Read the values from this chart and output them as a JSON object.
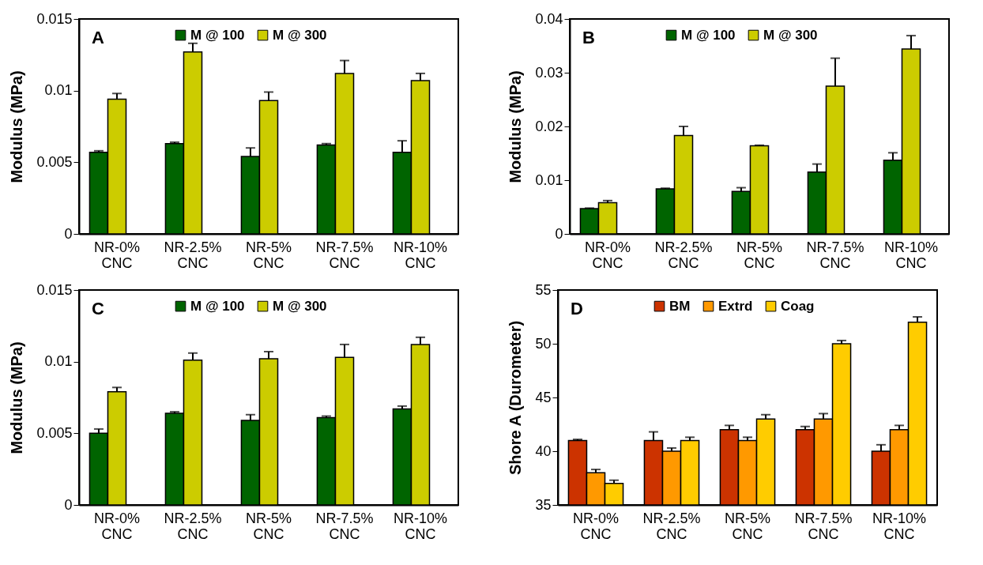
{
  "chart_data": [
    {
      "type": "bar",
      "title": "A",
      "ylabel": "Modulus (MPa)",
      "categories": [
        "NR-0% CNC",
        "NR-2.5% CNC",
        "NR-5% CNC",
        "NR-7.5% CNC",
        "NR-10% CNC"
      ],
      "ylim": [
        0,
        0.015
      ],
      "yticks": [
        0,
        0.005,
        0.01,
        0.015
      ],
      "grid": false,
      "legend": "top",
      "series": [
        {
          "name": "M @ 100",
          "color": "#006400",
          "values": [
            0.0057,
            0.0063,
            0.0054,
            0.0062,
            0.0057
          ],
          "errors": [
            0.0001,
            0.0001,
            0.0006,
            0.0001,
            0.0008
          ]
        },
        {
          "name": "M @ 300",
          "color": "#cccc00",
          "values": [
            0.0094,
            0.0127,
            0.0093,
            0.0112,
            0.0107
          ],
          "errors": [
            0.0004,
            0.0006,
            0.0006,
            0.0009,
            0.0005
          ]
        }
      ]
    },
    {
      "type": "bar",
      "title": "B",
      "ylabel": "Modulus (MPa)",
      "categories": [
        "NR-0% CNC",
        "NR-2.5% CNC",
        "NR-5% CNC",
        "NR-7.5% CNC",
        "NR-10% CNC"
      ],
      "ylim": [
        0,
        0.04
      ],
      "yticks": [
        0,
        0.01,
        0.02,
        0.03,
        0.04
      ],
      "grid": false,
      "legend": "top",
      "series": [
        {
          "name": "M @ 100",
          "color": "#006400",
          "values": [
            0.0047,
            0.0084,
            0.0079,
            0.0115,
            0.0137
          ],
          "errors": [
            0.0001,
            0.0001,
            0.0007,
            0.0015,
            0.0014
          ]
        },
        {
          "name": "M @ 300",
          "color": "#cccc00",
          "values": [
            0.0058,
            0.0183,
            0.0164,
            0.0275,
            0.0344
          ],
          "errors": [
            0.0004,
            0.0017,
            0.0001,
            0.0052,
            0.0025
          ]
        }
      ]
    },
    {
      "type": "bar",
      "title": "C",
      "ylabel": "Modulus (MPa)",
      "categories": [
        "NR-0% CNC",
        "NR-2.5% CNC",
        "NR-5% CNC",
        "NR-7.5% CNC",
        "NR-10% CNC"
      ],
      "ylim": [
        0,
        0.015
      ],
      "yticks": [
        0,
        0.005,
        0.01,
        0.015
      ],
      "grid": false,
      "legend": "top",
      "series": [
        {
          "name": "M @ 100",
          "color": "#006400",
          "values": [
            0.005,
            0.0064,
            0.0059,
            0.0061,
            0.0067
          ],
          "errors": [
            0.0003,
            0.0001,
            0.0004,
            0.0001,
            0.0002
          ]
        },
        {
          "name": "M @ 300",
          "color": "#cccc00",
          "values": [
            0.0079,
            0.0101,
            0.0102,
            0.0103,
            0.0112
          ],
          "errors": [
            0.0003,
            0.0005,
            0.0005,
            0.0009,
            0.0005
          ]
        }
      ]
    },
    {
      "type": "bar",
      "title": "D",
      "ylabel": "Shore A (Durometer)",
      "categories": [
        "NR-0% CNC",
        "NR-2.5% CNC",
        "NR-5% CNC",
        "NR-7.5% CNC",
        "NR-10% CNC"
      ],
      "ylim": [
        35,
        55
      ],
      "yticks": [
        35,
        40,
        45,
        50,
        55
      ],
      "grid": false,
      "legend": "top",
      "series": [
        {
          "name": "BM",
          "color": "#cc3300",
          "values": [
            41,
            41,
            42,
            42,
            40
          ],
          "errors": [
            0.1,
            0.8,
            0.4,
            0.3,
            0.6
          ]
        },
        {
          "name": "Extrd",
          "color": "#ff9900",
          "values": [
            38,
            40,
            41,
            43,
            42
          ],
          "errors": [
            0.3,
            0.3,
            0.3,
            0.5,
            0.4
          ]
        },
        {
          "name": "Coag",
          "color": "#ffcc00",
          "values": [
            37,
            41,
            43,
            50,
            52
          ],
          "errors": [
            0.3,
            0.3,
            0.4,
            0.3,
            0.5
          ]
        }
      ]
    }
  ]
}
